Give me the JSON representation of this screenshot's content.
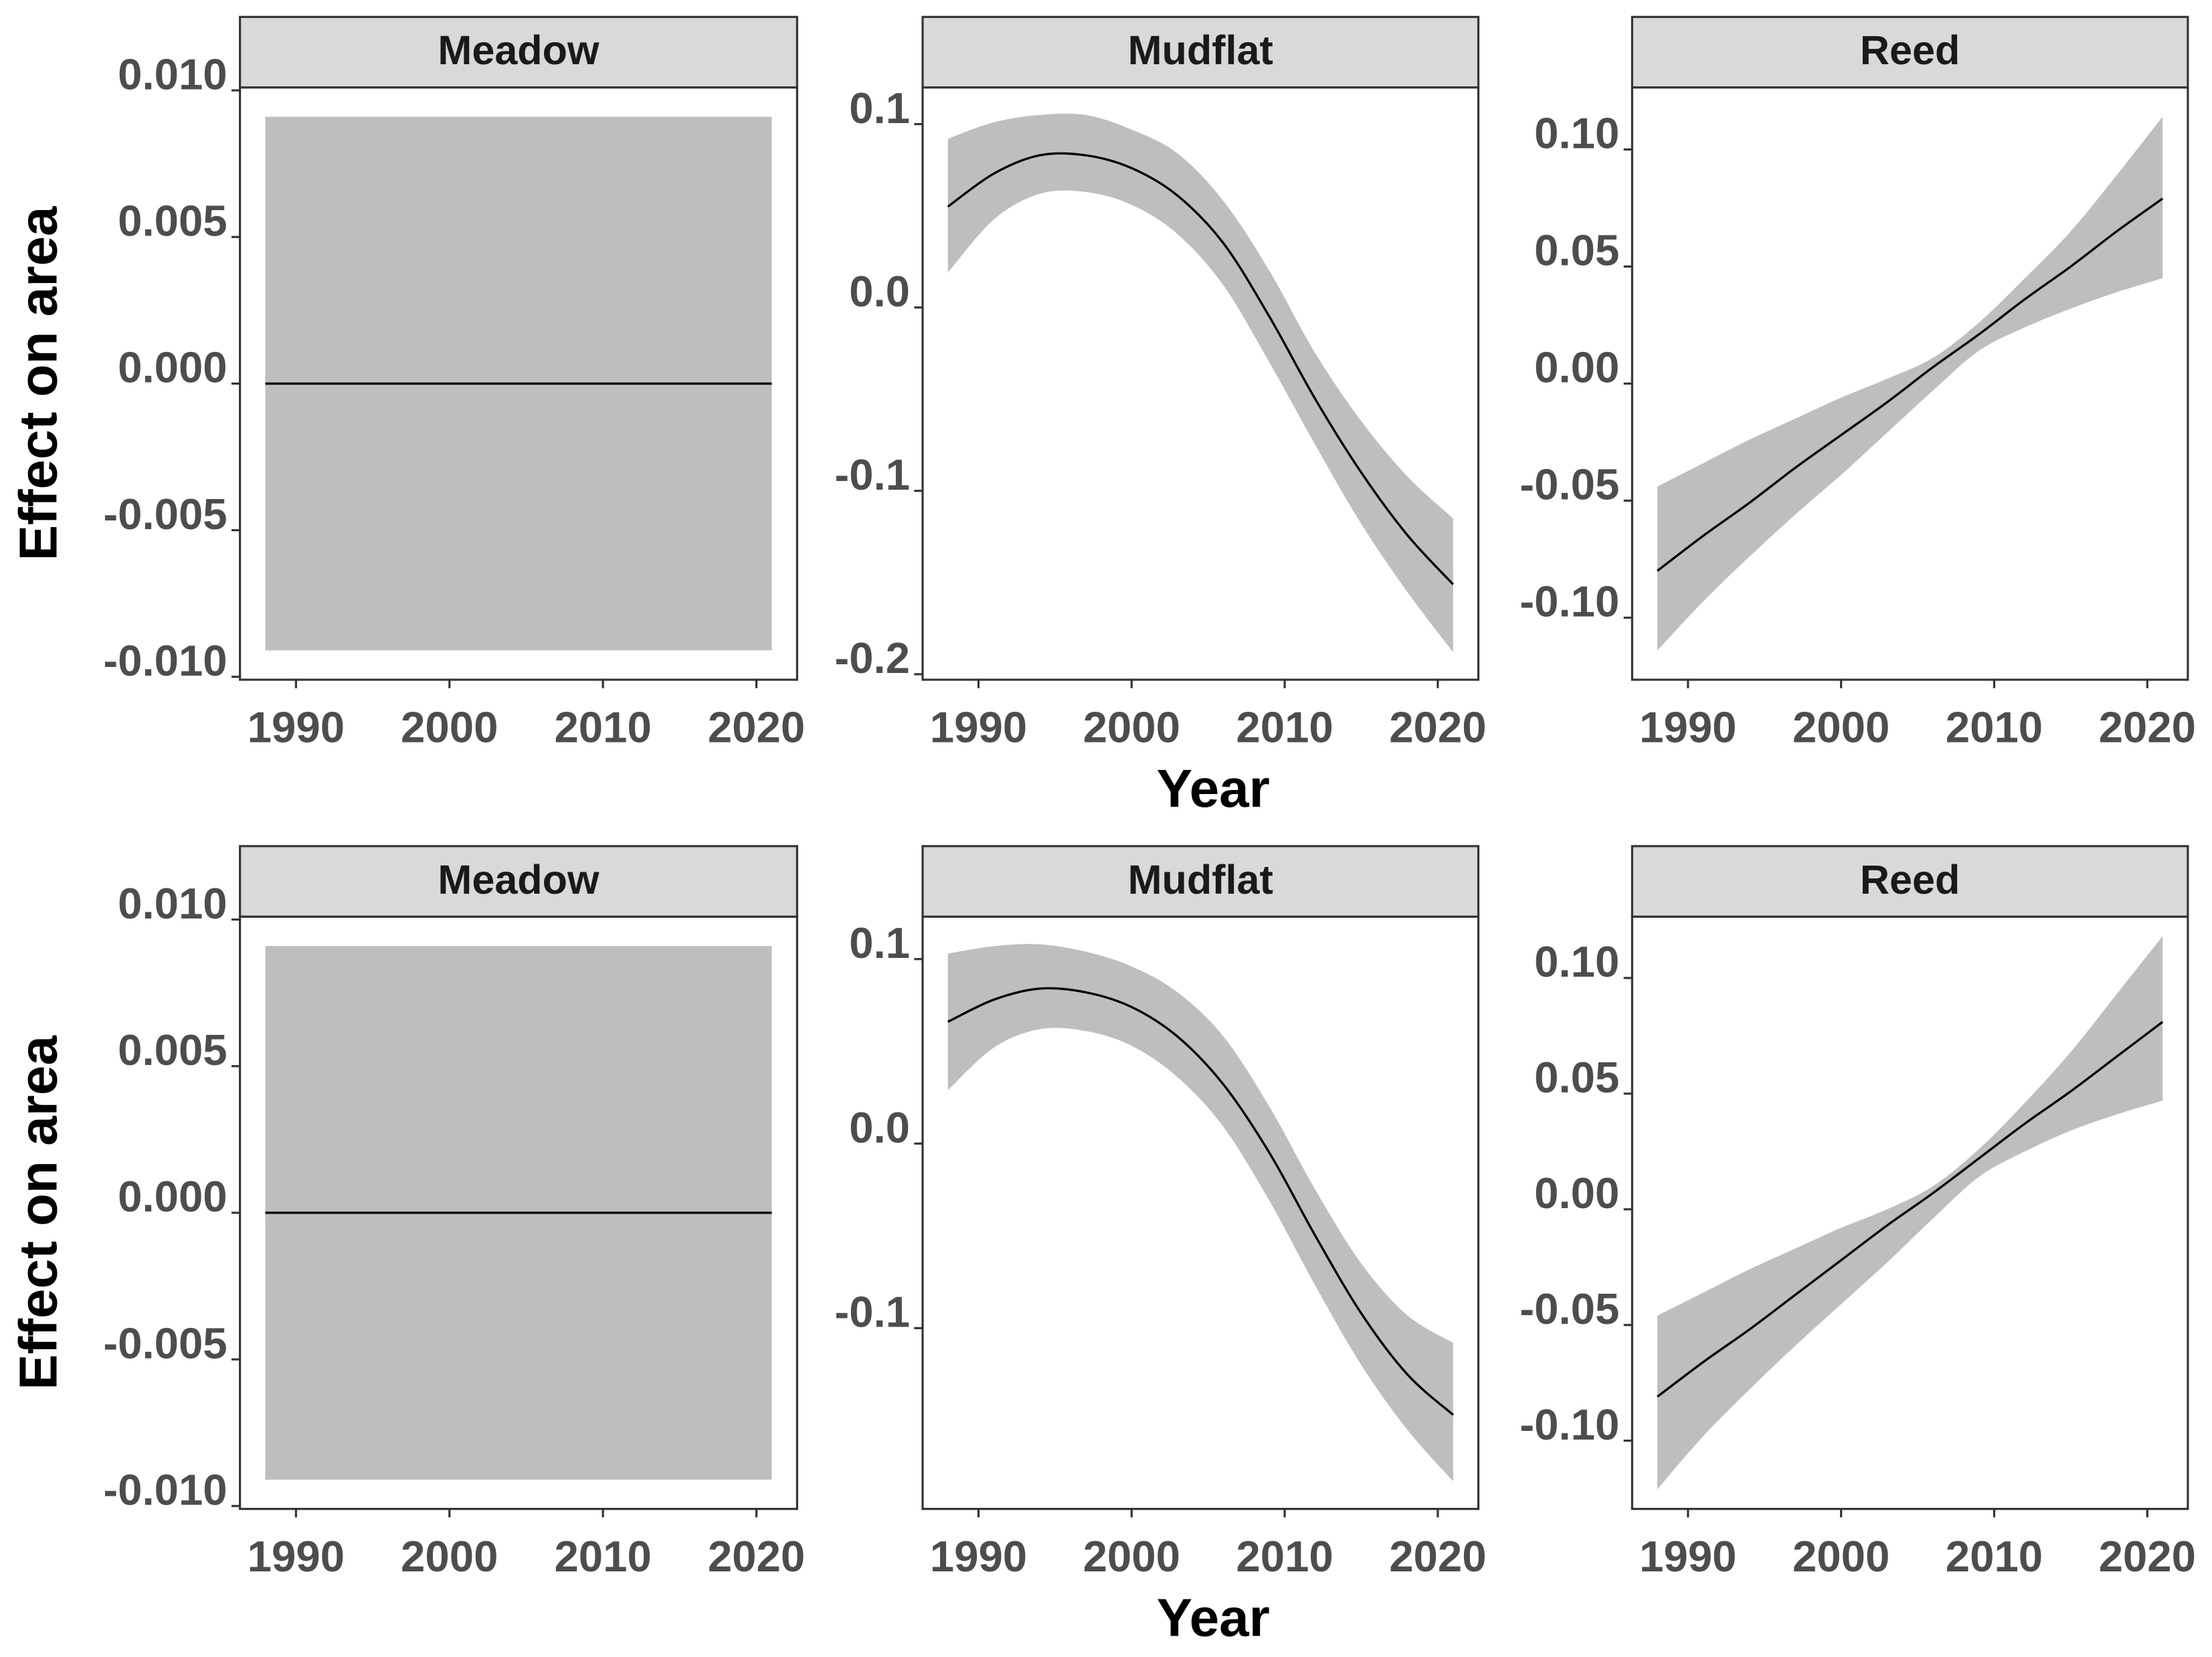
{
  "chart_data": [
    {
      "type": "line",
      "title": "Meadow",
      "ylabel": "Effect on area",
      "x": [
        1988,
        1991,
        1994,
        1997,
        2000,
        2003,
        2006,
        2009,
        2012,
        2015,
        2018,
        2021
      ],
      "values": [
        0,
        0,
        0,
        0,
        0,
        0,
        0,
        0,
        0,
        0,
        0,
        0
      ],
      "upper": [
        0.0091,
        0.0091,
        0.0091,
        0.0091,
        0.0091,
        0.0091,
        0.0091,
        0.0091,
        0.0091,
        0.0091,
        0.0091,
        0.0091
      ],
      "lower": [
        -0.0091,
        -0.0091,
        -0.0091,
        -0.0091,
        -0.0091,
        -0.0091,
        -0.0091,
        -0.0091,
        -0.0091,
        -0.0091,
        -0.0091,
        -0.0091
      ],
      "color": "#000000",
      "band_color": "#bebebe",
      "xlim": [
        1986.35,
        2022.65
      ],
      "xticks": [
        1990,
        2000,
        2010,
        2020
      ],
      "ylim": [
        -0.0101,
        0.0101
      ],
      "yticks": [
        {
          "value": -0.01,
          "label": "-0.010"
        },
        -0.005,
        {
          "value": 0,
          "label": "0.000"
        },
        0.005,
        {
          "value": 0.01,
          "label": "0.010"
        }
      ]
    },
    {
      "type": "line",
      "title": "Mudflat",
      "xlabel": "Year",
      "x": [
        1988,
        1991,
        1994,
        1997,
        2000,
        2003,
        2006,
        2009,
        2012,
        2015,
        2018,
        2021
      ],
      "values": [
        0.055,
        0.073,
        0.083,
        0.083,
        0.076,
        0.061,
        0.035,
        -0.005,
        -0.05,
        -0.09,
        -0.124,
        -0.151
      ],
      "upper": [
        0.092,
        0.101,
        0.105,
        0.105,
        0.097,
        0.084,
        0.058,
        0.02,
        -0.025,
        -0.062,
        -0.092,
        -0.115
      ],
      "lower": [
        0.019,
        0.048,
        0.062,
        0.063,
        0.056,
        0.04,
        0.012,
        -0.03,
        -0.075,
        -0.118,
        -0.155,
        -0.188
      ],
      "color": "#000000",
      "band_color": "#bebebe",
      "xlim": [
        1986.35,
        2022.65
      ],
      "xticks": [
        1990,
        2000,
        2010,
        2020
      ],
      "ylim": [
        -0.203,
        0.12
      ],
      "yticks": [
        -0.2,
        -0.1,
        {
          "value": 0,
          "label": "0.0"
        },
        0.1
      ]
    },
    {
      "type": "line",
      "title": "Reed",
      "x": [
        1988,
        1991,
        1994,
        1997,
        2000,
        2003,
        2006,
        2009,
        2012,
        2015,
        2018,
        2021
      ],
      "values": [
        -0.08,
        -0.065,
        -0.051,
        -0.036,
        -0.022,
        -0.008,
        0.007,
        0.021,
        0.036,
        0.05,
        0.065,
        0.079
      ],
      "upper": [
        -0.044,
        -0.034,
        -0.024,
        -0.015,
        -0.006,
        0.002,
        0.011,
        0.026,
        0.045,
        0.065,
        0.089,
        0.114
      ],
      "lower": [
        -0.114,
        -0.093,
        -0.074,
        -0.056,
        -0.039,
        -0.021,
        -0.003,
        0.014,
        0.024,
        0.032,
        0.039,
        0.045
      ],
      "color": "#000000",
      "band_color": "#bebebe",
      "xlim": [
        1986.35,
        2022.65
      ],
      "xticks": [
        1990,
        2000,
        2010,
        2020
      ],
      "ylim": [
        -0.1265,
        0.1265
      ],
      "yticks": [
        {
          "value": -0.1,
          "label": "-0.10"
        },
        -0.05,
        {
          "value": 0,
          "label": "0.00"
        },
        0.05,
        {
          "value": 0.1,
          "label": "0.10"
        }
      ]
    },
    {
      "type": "line",
      "title": "Meadow",
      "ylabel": "Effect on area",
      "x": [
        1988,
        1991,
        1994,
        1997,
        2000,
        2003,
        2006,
        2009,
        2012,
        2015,
        2018,
        2021
      ],
      "values": [
        0,
        0,
        0,
        0,
        0,
        0,
        0,
        0,
        0,
        0,
        0,
        0
      ],
      "upper": [
        0.0091,
        0.0091,
        0.0091,
        0.0091,
        0.0091,
        0.0091,
        0.0091,
        0.0091,
        0.0091,
        0.0091,
        0.0091,
        0.0091
      ],
      "lower": [
        -0.0091,
        -0.0091,
        -0.0091,
        -0.0091,
        -0.0091,
        -0.0091,
        -0.0091,
        -0.0091,
        -0.0091,
        -0.0091,
        -0.0091,
        -0.0091
      ],
      "color": "#000000",
      "band_color": "#bebebe",
      "xlim": [
        1986.35,
        2022.65
      ],
      "xticks": [
        1990,
        2000,
        2010,
        2020
      ],
      "ylim": [
        -0.0101,
        0.0101
      ],
      "yticks": [
        {
          "value": -0.01,
          "label": "-0.010"
        },
        -0.005,
        {
          "value": 0,
          "label": "0.000"
        },
        0.005,
        {
          "value": 0.01,
          "label": "0.010"
        }
      ]
    },
    {
      "type": "line",
      "title": "Mudflat",
      "xlabel": "Year",
      "x": [
        1988,
        1991,
        1994,
        1997,
        2000,
        2003,
        2006,
        2009,
        2012,
        2015,
        2018,
        2021
      ],
      "values": [
        0.066,
        0.078,
        0.084,
        0.082,
        0.074,
        0.058,
        0.032,
        -0.005,
        -0.05,
        -0.092,
        -0.125,
        -0.147
      ],
      "upper": [
        0.103,
        0.107,
        0.108,
        0.104,
        0.096,
        0.082,
        0.058,
        0.02,
        -0.025,
        -0.065,
        -0.093,
        -0.108
      ],
      "lower": [
        0.029,
        0.052,
        0.062,
        0.061,
        0.053,
        0.036,
        0.009,
        -0.031,
        -0.077,
        -0.12,
        -0.155,
        -0.183
      ],
      "color": "#000000",
      "band_color": "#bebebe",
      "xlim": [
        1986.35,
        2022.65
      ],
      "xticks": [
        1990,
        2000,
        2010,
        2020
      ],
      "ylim": [
        -0.198,
        0.123
      ],
      "yticks": [
        -0.1,
        {
          "value": 0,
          "label": "0.0"
        },
        0.1
      ]
    },
    {
      "type": "line",
      "title": "Reed",
      "x": [
        1988,
        1991,
        1994,
        1997,
        2000,
        2003,
        2006,
        2009,
        2012,
        2015,
        2018,
        2021
      ],
      "values": [
        -0.081,
        -0.066,
        -0.052,
        -0.037,
        -0.022,
        -0.007,
        0.007,
        0.022,
        0.037,
        0.051,
        0.066,
        0.081
      ],
      "upper": [
        -0.046,
        -0.036,
        -0.026,
        -0.017,
        -0.008,
        0.0,
        0.01,
        0.026,
        0.046,
        0.068,
        0.093,
        0.118
      ],
      "lower": [
        -0.121,
        -0.098,
        -0.078,
        -0.059,
        -0.041,
        -0.023,
        -0.004,
        0.014,
        0.025,
        0.034,
        0.041,
        0.047
      ],
      "color": "#000000",
      "band_color": "#bebebe",
      "xlim": [
        1986.35,
        2022.65
      ],
      "xticks": [
        1990,
        2000,
        2010,
        2020
      ],
      "ylim": [
        -0.1295,
        0.1265
      ],
      "yticks": [
        {
          "value": -0.1,
          "label": "-0.10"
        },
        -0.05,
        {
          "value": 0,
          "label": "0.00"
        },
        0.05,
        {
          "value": 0.1,
          "label": "0.10"
        }
      ]
    }
  ]
}
